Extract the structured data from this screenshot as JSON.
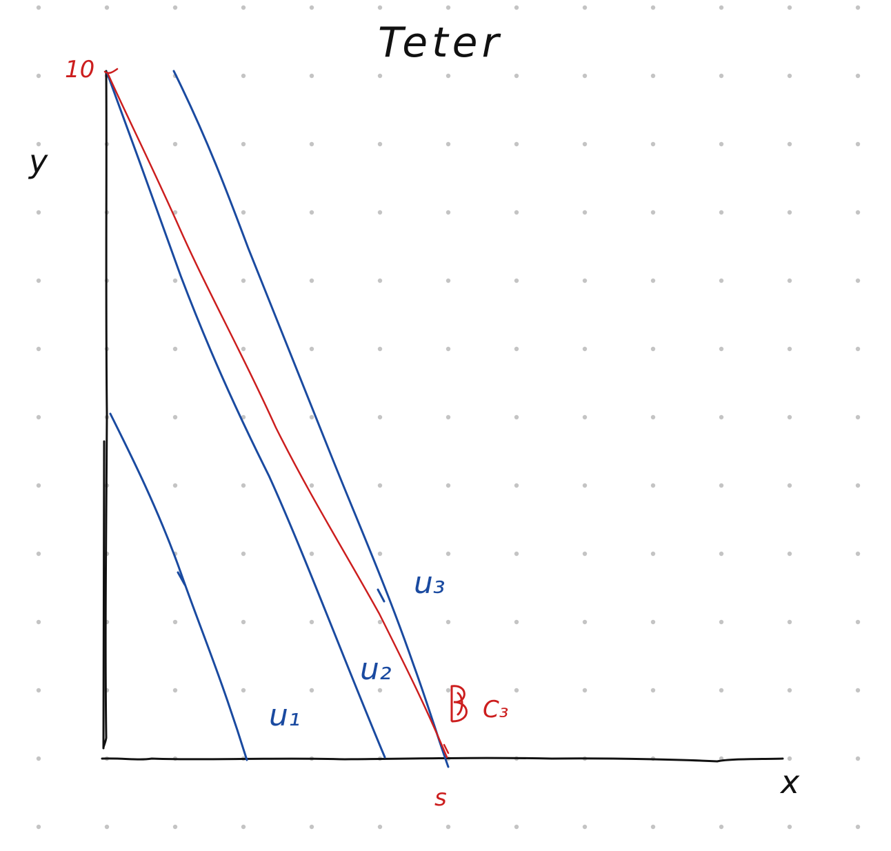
{
  "title": "Teter",
  "axes": {
    "y_label": "y",
    "x_label": "x"
  },
  "labels": {
    "origin_value": "10",
    "s_label": "s",
    "u1": "u₁",
    "u2": "u₂",
    "u3": "u₃",
    "c3": "C₃"
  },
  "colors": {
    "black": "#111111",
    "blue": "#1a4aa0",
    "red": "#cc1e1e",
    "grid_dot": "#c4c4c4",
    "background": "#ffffff"
  }
}
